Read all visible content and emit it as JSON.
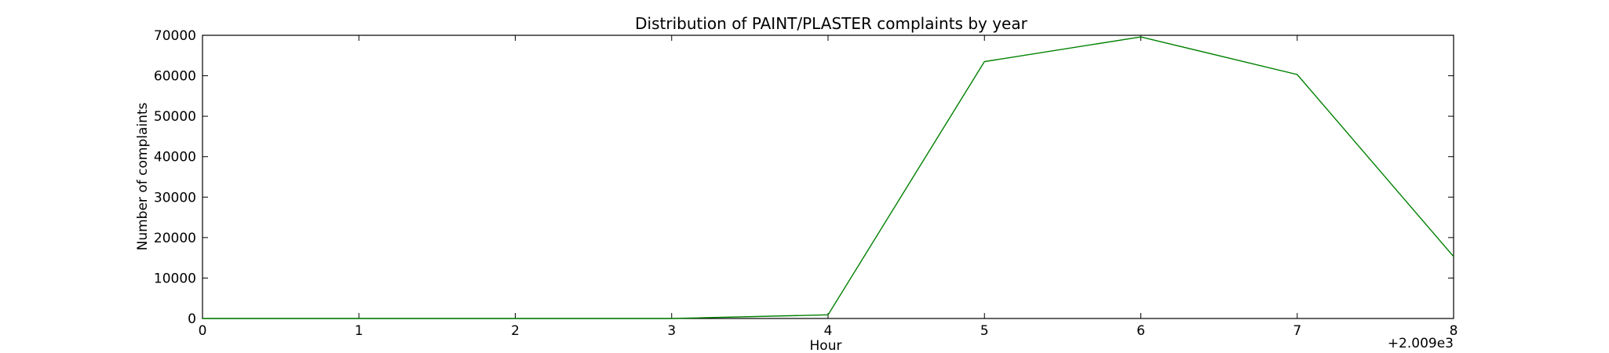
{
  "chart_data": {
    "type": "line",
    "title": "Distribution of  PAINT/PLASTER complaints by year",
    "xlabel": "Hour",
    "ylabel": "Number of complaints",
    "x_offset_label": "+2.009e3",
    "x": [
      0,
      1,
      2,
      3,
      4,
      5,
      6,
      7,
      8
    ],
    "series": [
      {
        "values": [
          0,
          0,
          0,
          0,
          900,
          63500,
          69600,
          60300,
          15300
        ],
        "color": "#008000"
      }
    ],
    "xlim": [
      0,
      8
    ],
    "ylim": [
      0,
      70000
    ],
    "xticks": [
      "0",
      "1",
      "2",
      "3",
      "4",
      "5",
      "6",
      "7",
      "8"
    ],
    "yticks": [
      "0",
      "10000",
      "20000",
      "30000",
      "40000",
      "50000",
      "60000",
      "70000"
    ],
    "grid": false,
    "legend": "none"
  }
}
